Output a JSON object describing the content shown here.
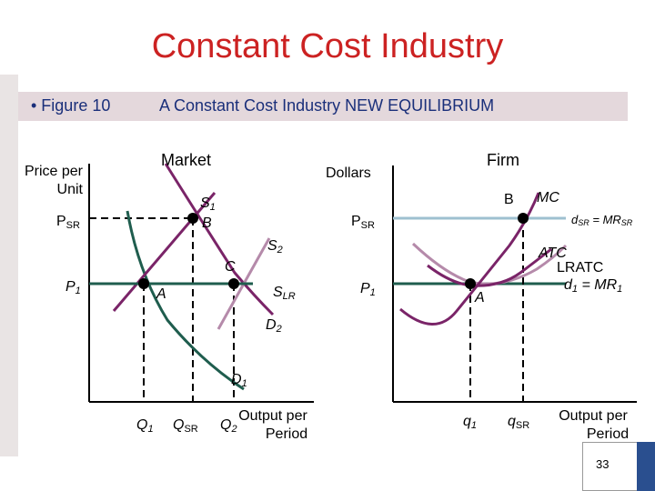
{
  "slide": {
    "title": "Constant Cost Industry",
    "bullet": "• Figure 10",
    "figure_caption": "A Constant Cost Industry NEW EQUILIBRIUM",
    "page_number": "33"
  },
  "market": {
    "heading": "Market",
    "y_axis_label_line1": "Price per",
    "y_axis_label_line2": "Unit",
    "x_axis_label_line1": "Output per",
    "x_axis_label_line2": "Period",
    "price_labels": {
      "psr": "P",
      "psr_sub": "SR",
      "p1": "P",
      "p1_sub": "1"
    },
    "quantity_labels": {
      "q1": "Q",
      "q1_sub": "1",
      "qsr": "Q",
      "qsr_sub": "SR",
      "q2": "Q",
      "q2_sub": "2"
    },
    "curve_labels": {
      "s1": "S",
      "s1_sub": "1",
      "s2": "S",
      "s2_sub": "2",
      "slr": "S",
      "slr_sub": "LR",
      "d1": "D",
      "d1_sub": "1",
      "d2": "D",
      "d2_sub": "2"
    },
    "points": {
      "a": "A",
      "b": "B",
      "c": "C"
    }
  },
  "firm": {
    "heading": "Firm",
    "y_axis_label": "Dollars",
    "x_axis_label_line1": "Output per",
    "x_axis_label_line2": "Period",
    "price_labels": {
      "psr": "P",
      "psr_sub": "SR",
      "p1": "P",
      "p1_sub": "1"
    },
    "quantity_labels": {
      "q1": "q",
      "q1_sub": "1",
      "qsr": "q",
      "qsr_sub": "SR"
    },
    "curve_labels": {
      "mc": "MC",
      "atc": "ATC",
      "lratc": "LRATC",
      "dsr": "d",
      "dsr_sub": "SR",
      "dsr_eq": " = MR",
      "dsr_eq_sub": "SR",
      "d1": "d",
      "d1_sub": "1",
      "d1_eq": " = MR",
      "d1_eq_sub": "1"
    },
    "points": {
      "a": "A",
      "b": "B"
    }
  },
  "colors": {
    "title": "#cc2222",
    "band_text": "#1a2f7a",
    "demand_d1": "#1f5d4e",
    "demand_d2": "#7a2468",
    "supply_s1": "#1f5d4e",
    "supply_s2": "#b58aaa",
    "slr": "#1f5d4e",
    "psr_line": "#9ec0d0",
    "mc": "#7a2468",
    "atc": "#7a2468",
    "lratc": "#b58aaa"
  }
}
